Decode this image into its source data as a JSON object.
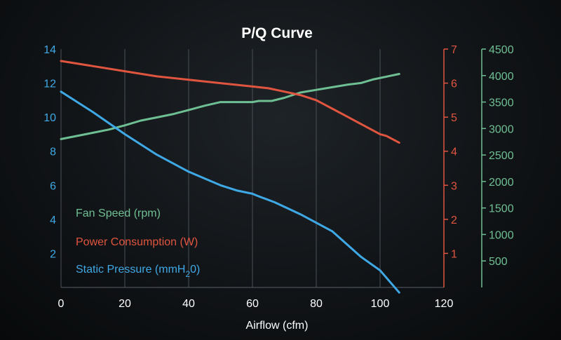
{
  "chart_data": {
    "type": "line",
    "title": "P/Q Curve",
    "xlabel": "Airflow (cfm)",
    "xlim": [
      0,
      120
    ],
    "xticks": [
      0,
      20,
      40,
      60,
      80,
      100,
      120
    ],
    "grid": true,
    "legend_placement": "lower-left",
    "axes": {
      "left": {
        "ylim": [
          0,
          14
        ],
        "ticks": [
          2,
          4,
          6,
          8,
          10,
          12,
          14
        ],
        "color": "#3fa9e6"
      },
      "right_inner": {
        "ylim": [
          0,
          7
        ],
        "ticks": [
          1,
          2,
          3,
          4,
          5,
          6,
          7
        ],
        "color": "#e0553f"
      },
      "right_outer": {
        "ylim": [
          0,
          4500
        ],
        "ticks": [
          500,
          1000,
          1500,
          2000,
          2500,
          3000,
          3500,
          4000,
          4500
        ],
        "color": "#6fbf94"
      }
    },
    "series": [
      {
        "name": "Fan Speed (rpm)",
        "axis": "right_outer",
        "color": "#6fbf94",
        "x": [
          0,
          5,
          10,
          15,
          20,
          25,
          30,
          35,
          40,
          45,
          50,
          55,
          60,
          62,
          66,
          70,
          75,
          80,
          85,
          90,
          94,
          98,
          102,
          106
        ],
        "y": [
          2800,
          2860,
          2920,
          2980,
          3060,
          3150,
          3210,
          3270,
          3350,
          3430,
          3500,
          3500,
          3500,
          3520,
          3520,
          3580,
          3680,
          3730,
          3780,
          3830,
          3860,
          3930,
          3980,
          4030
        ]
      },
      {
        "name": "Power Consumption (W)",
        "axis": "right_inner",
        "color": "#e0553f",
        "x": [
          0,
          10,
          20,
          30,
          40,
          50,
          55,
          60,
          65,
          70,
          75,
          80,
          85,
          90,
          95,
          100,
          102,
          106
        ],
        "y": [
          6.65,
          6.5,
          6.35,
          6.2,
          6.1,
          6.0,
          5.95,
          5.9,
          5.85,
          5.75,
          5.65,
          5.5,
          5.25,
          5.0,
          4.75,
          4.5,
          4.45,
          4.25
        ]
      },
      {
        "name": "Static Pressure (mmH20)",
        "name_parts": {
          "before": "Static Pressure (mmH",
          "sub": "2",
          "after": "0)"
        },
        "axis": "left",
        "color": "#3fa9e6",
        "x": [
          0,
          10,
          20,
          30,
          40,
          50,
          55,
          60,
          62,
          67,
          75,
          85,
          94,
          100,
          106
        ],
        "y": [
          11.5,
          10.3,
          9.0,
          7.8,
          6.8,
          6.0,
          5.7,
          5.5,
          5.35,
          5.0,
          4.3,
          3.3,
          1.8,
          1.0,
          -0.3
        ]
      }
    ]
  }
}
